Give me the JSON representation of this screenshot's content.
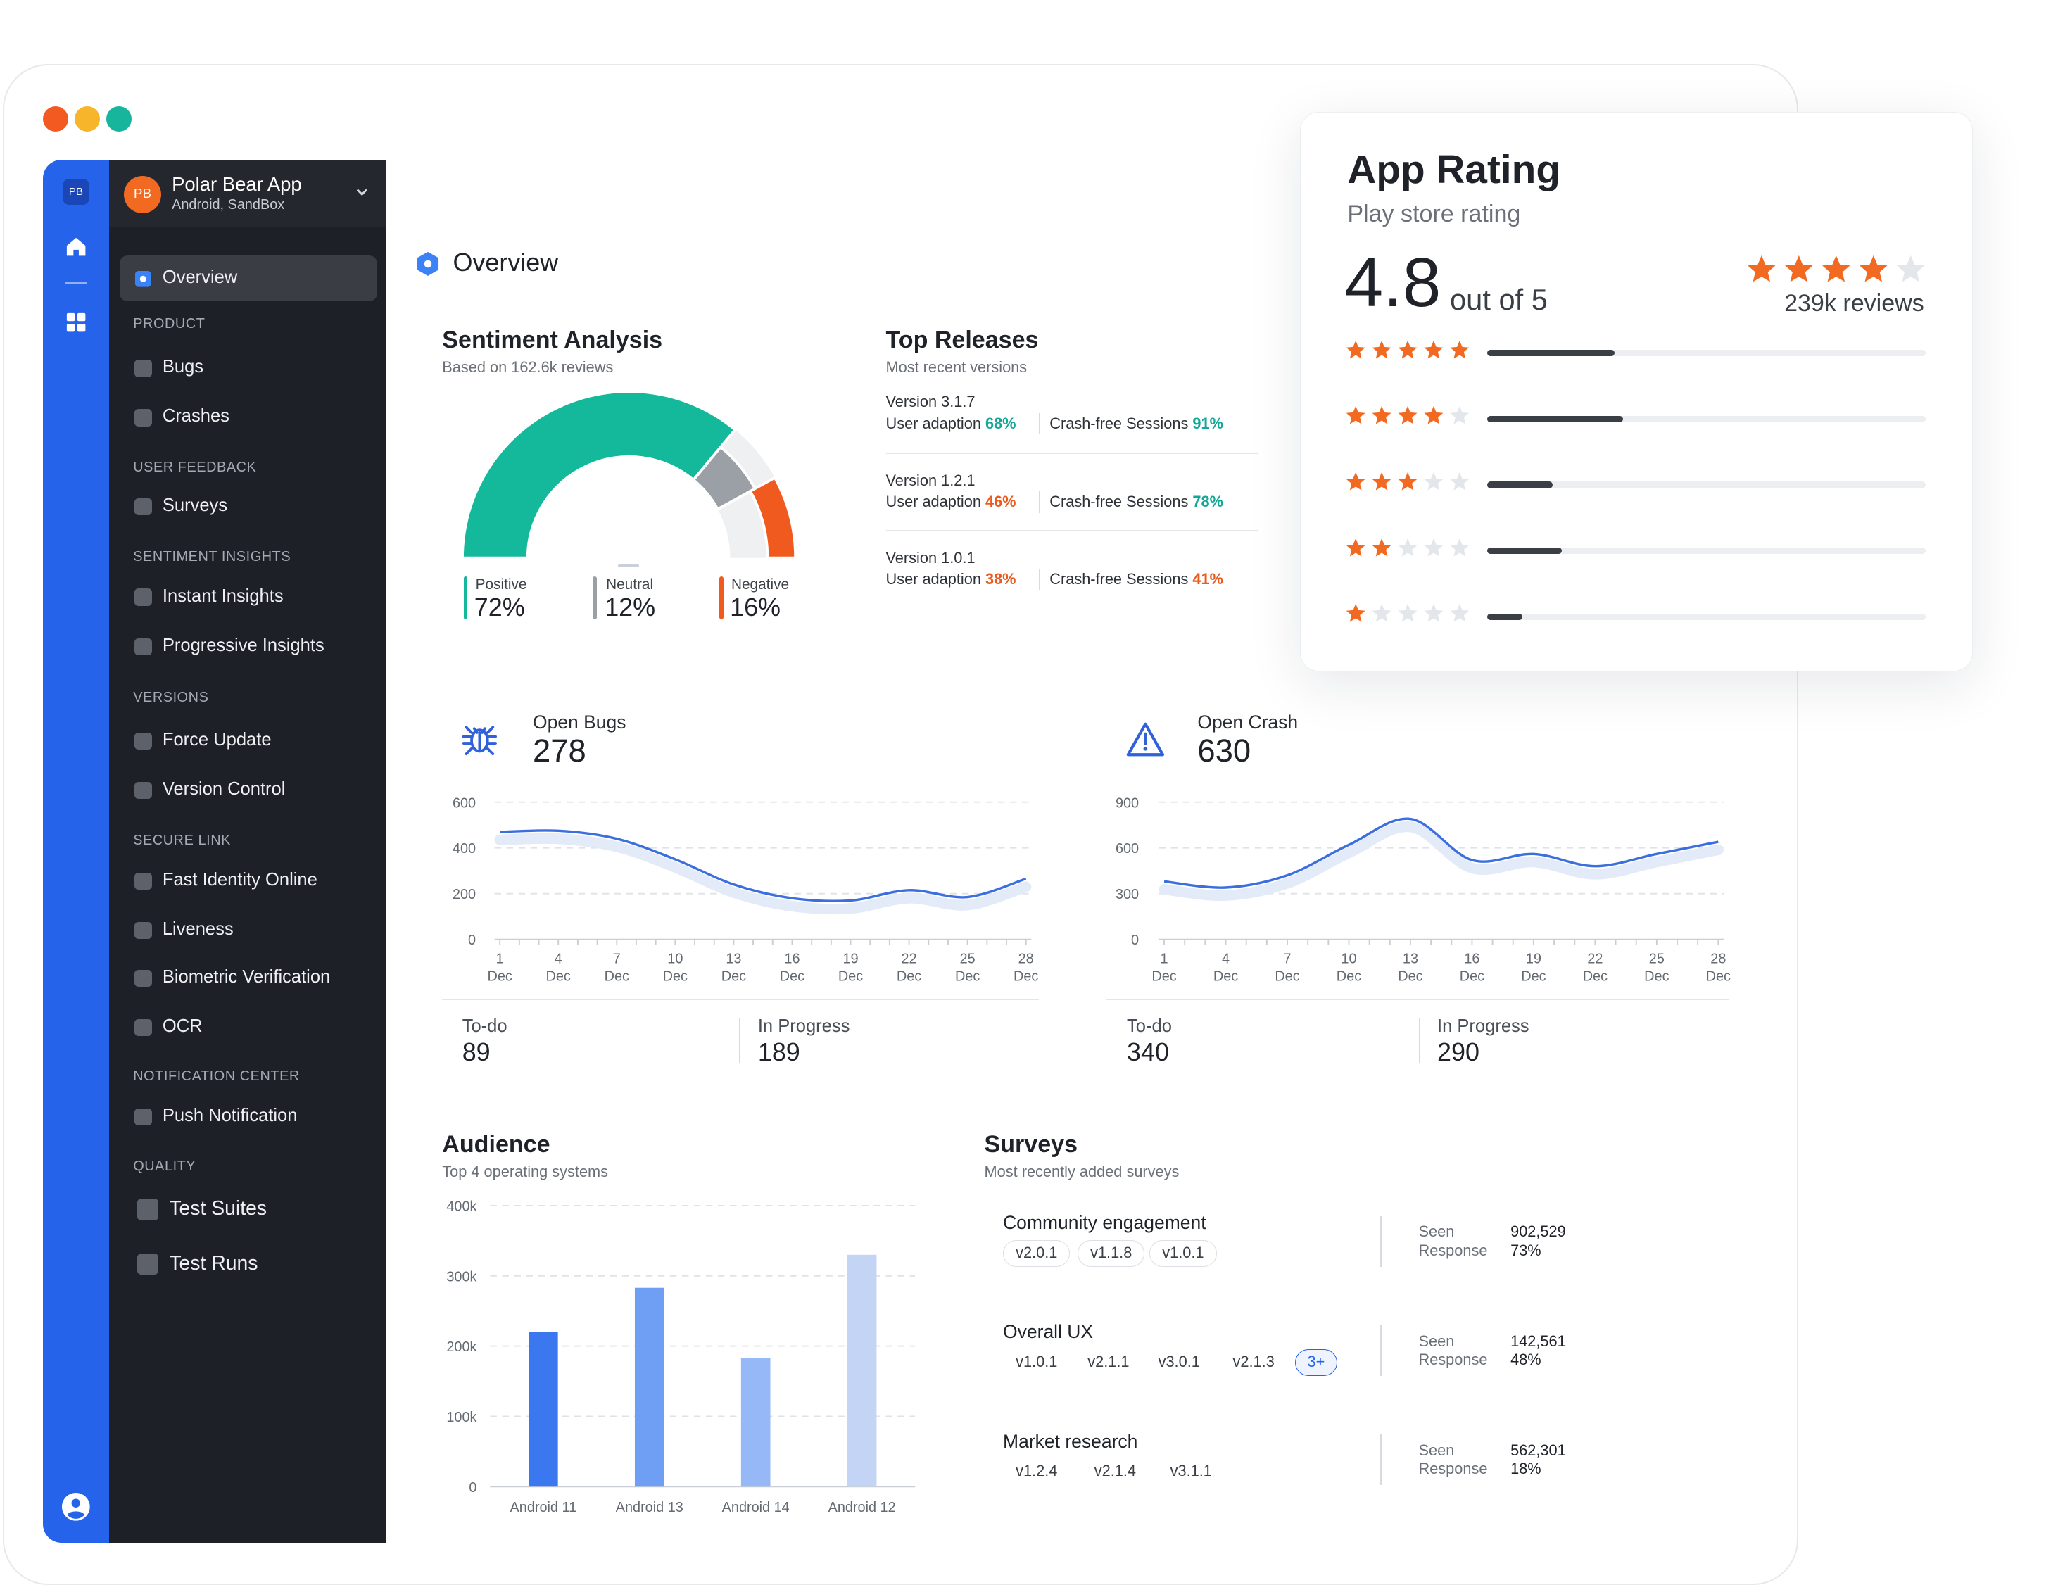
{
  "window": {
    "dots": [
      "#f25a22",
      "#f7b52c",
      "#17b69c"
    ]
  },
  "rail": {
    "badge": "PB"
  },
  "app": {
    "avatar": "PB",
    "name": "Polar Bear App",
    "subtitle": "Android, SandBox"
  },
  "nav": {
    "overview": "Overview",
    "sections": {
      "product": "PRODUCT",
      "user_feedback": "USER FEEDBACK",
      "sentiment_insights": "SENTIMENT INSIGHTS",
      "versions": "VERSIONS",
      "secure_link": "SECURE LINK",
      "notification_center": "NOTIFICATION CENTER",
      "quality": "QUALITY"
    },
    "items": {
      "bugs": "Bugs",
      "crashes": "Crashes",
      "surveys": "Surveys",
      "instant_insights": "Instant Insights",
      "progressive_insights": "Progressive Insights",
      "force_update": "Force Update",
      "version_control": "Version Control",
      "fast_identity": "Fast Identity Online",
      "liveness": "Liveness",
      "biometric": "Biometric Verification",
      "ocr": "OCR",
      "push_notification": "Push Notification",
      "test_suites": "Test Suites",
      "test_runs": "Test Runs"
    }
  },
  "page": {
    "title": "Overview"
  },
  "sentiment": {
    "title": "Sentiment Analysis",
    "subtitle": "Based on 162.6k reviews",
    "positive": {
      "label": "Positive",
      "value": "72%",
      "pct": 72,
      "color": "#14b89a"
    },
    "neutral": {
      "label": "Neutral",
      "value": "12%",
      "pct": 12,
      "color": "#9aa0a6"
    },
    "negative": {
      "label": "Negative",
      "value": "16%",
      "pct": 16,
      "color": "#f05a1e"
    }
  },
  "releases": {
    "title": "Top Releases",
    "subtitle": "Most recent versions",
    "items": [
      {
        "version_label": "Version",
        "version": "3.1.7",
        "adoption_label": "User adaption",
        "adoption": "68%",
        "crash_label": "Crash-free Sessions",
        "crash": "91%"
      },
      {
        "version_label": "Version",
        "version": "1.2.1",
        "adoption_label": "User adaption",
        "adoption": "46%",
        "crash_label": "Crash-free Sessions",
        "crash": "78%"
      },
      {
        "version_label": "Version",
        "version": "1.0.1",
        "adoption_label": "User adaption",
        "adoption": "38%",
        "crash_label": "Crash-free Sessions",
        "crash": "41%"
      }
    ]
  },
  "bugs": {
    "label": "Open Bugs",
    "value": "278",
    "todo_label": "To-do",
    "todo": "89",
    "progress_label": "In Progress",
    "progress": "189"
  },
  "crash": {
    "label": "Open Crash",
    "value": "630",
    "todo_label": "To-do",
    "todo": "340",
    "progress_label": "In Progress",
    "progress": "290"
  },
  "audience": {
    "title": "Audience",
    "subtitle": "Top 4 operating systems"
  },
  "surveys": {
    "title": "Surveys",
    "subtitle": "Most recently added surveys",
    "items": [
      {
        "name": "Community engagement",
        "chips": [
          "v2.0.1",
          "v1.1.8",
          "v1.0.1"
        ],
        "seen_label": "Seen",
        "seen": "902,529",
        "response_label": "Response",
        "response": "73%"
      },
      {
        "name": "Overall UX",
        "chips": [
          "v1.0.1",
          "v2.1.1",
          "v3.0.1",
          "v2.1.3"
        ],
        "more": "3+",
        "seen_label": "Seen",
        "seen": "142,561",
        "response_label": "Response",
        "response": "48%"
      },
      {
        "name": "Market research",
        "chips": [
          "v1.2.4",
          "v2.1.4",
          "v3.1.1"
        ],
        "seen_label": "Seen",
        "seen": "562,301",
        "response_label": "Response",
        "response": "18%"
      }
    ]
  },
  "rating": {
    "title": "App Rating",
    "subtitle": "Play store rating",
    "score": "4.8",
    "out_of": "out of 5",
    "reviews": "239k reviews",
    "stars": 4,
    "distribution": [
      {
        "stars": 5,
        "share": 0.29
      },
      {
        "stars": 4,
        "share": 0.31
      },
      {
        "stars": 3,
        "share": 0.15
      },
      {
        "stars": 2,
        "share": 0.17
      },
      {
        "stars": 1,
        "share": 0.08
      }
    ],
    "star_color": "#f26a21",
    "star_empty_color": "#e3e6ea"
  },
  "chart_data": [
    {
      "type": "line",
      "x": [
        "1 Dec",
        "4 Dec",
        "7 Dec",
        "10 Dec",
        "13 Dec",
        "16 Dec",
        "19 Dec",
        "22 Dec",
        "25 Dec",
        "28 Dec"
      ],
      "x_ticks": [
        [
          "1",
          "Dec"
        ],
        [
          "4",
          "Dec"
        ],
        [
          "7",
          "Dec"
        ],
        [
          "10",
          "Dec"
        ],
        [
          "13",
          "Dec"
        ],
        [
          "16",
          "Dec"
        ],
        [
          "19",
          "Dec"
        ],
        [
          "22",
          "Dec"
        ],
        [
          "25",
          "Dec"
        ],
        [
          "28",
          "Dec"
        ]
      ],
      "series": [
        {
          "values": [
            470,
            475,
            440,
            350,
            240,
            180,
            170,
            215,
            185,
            265
          ]
        }
      ],
      "yticks": [
        "0",
        "200",
        "400",
        "600"
      ],
      "ylim": [
        0,
        600
      ],
      "grid": true,
      "color": "#3b6fe0"
    },
    {
      "type": "line",
      "x": [
        "1 Dec",
        "4 Dec",
        "7 Dec",
        "10 Dec",
        "13 Dec",
        "16 Dec",
        "19 Dec",
        "22 Dec",
        "25 Dec",
        "28 Dec"
      ],
      "x_ticks": [
        [
          "1",
          "Dec"
        ],
        [
          "4",
          "Dec"
        ],
        [
          "7",
          "Dec"
        ],
        [
          "10",
          "Dec"
        ],
        [
          "13",
          "Dec"
        ],
        [
          "16",
          "Dec"
        ],
        [
          "19",
          "Dec"
        ],
        [
          "22",
          "Dec"
        ],
        [
          "25",
          "Dec"
        ],
        [
          "28",
          "Dec"
        ]
      ],
      "series": [
        {
          "values": [
            380,
            340,
            420,
            620,
            790,
            520,
            560,
            480,
            560,
            640
          ]
        }
      ],
      "yticks": [
        "0",
        "300",
        "600",
        "900"
      ],
      "ylim": [
        0,
        900
      ],
      "grid": true,
      "color": "#3b6fe0"
    },
    {
      "type": "bar",
      "categories": [
        "Android 11",
        "Android 13",
        "Android 14",
        "Android 12"
      ],
      "values": [
        220000,
        283000,
        183000,
        330000
      ],
      "colors": [
        "#3b77ee",
        "#6f9ef5",
        "#97b8f7",
        "#c3d4f4"
      ],
      "yticks": [
        "0",
        "100k",
        "200k",
        "300k",
        "400k"
      ],
      "ylim": [
        0,
        400000
      ],
      "grid": true
    }
  ]
}
